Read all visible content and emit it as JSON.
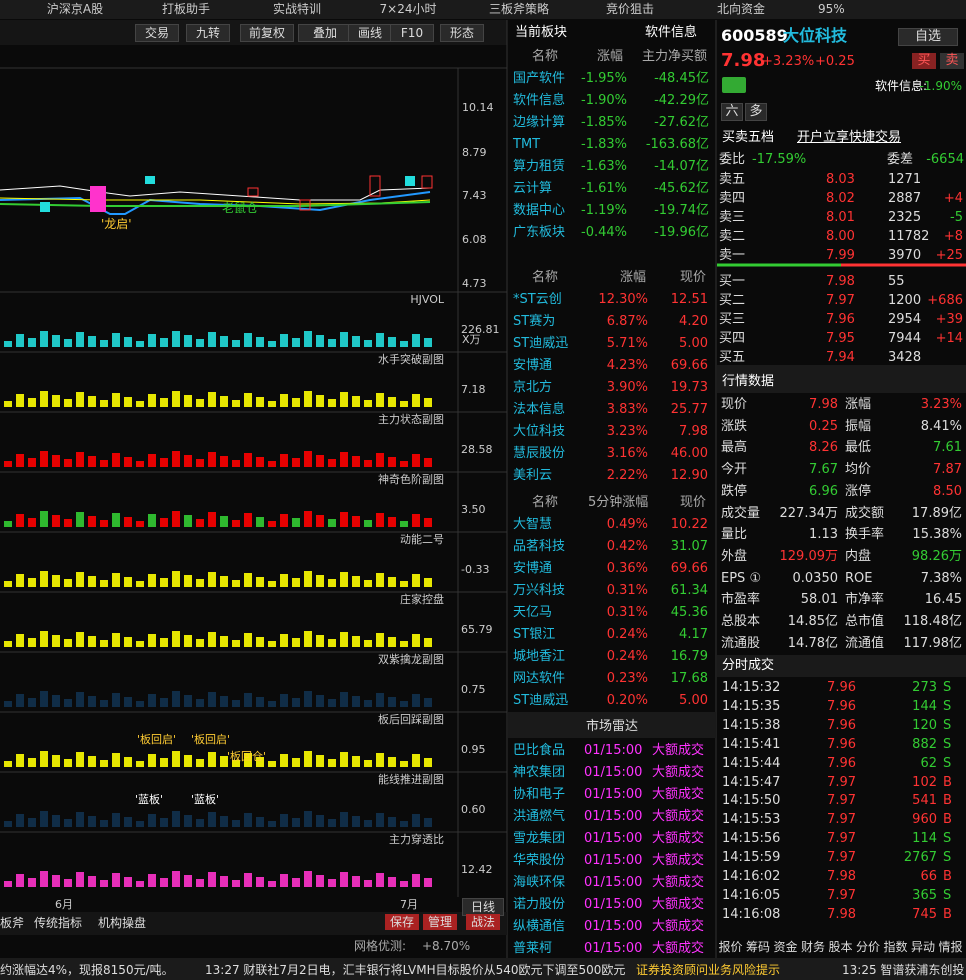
{
  "nav": [
    "沪深京A股",
    "打板助手",
    "实战特训",
    "7×24小时",
    "三板斧策略",
    "竞价狙击",
    "北向资金"
  ],
  "zoom": "95%",
  "toolbar": [
    "交易",
    "九转",
    "前复权",
    "叠加",
    "画线",
    "F10",
    "形态"
  ],
  "main_chart": {
    "yticks": [
      "10.14",
      "8.79",
      "7.43",
      "6.08",
      "4.73"
    ],
    "notes": [
      "'龙启'",
      "老鼠仓"
    ]
  },
  "panels": [
    {
      "title": "HJVOL",
      "value": "226.81",
      "unit": "X万"
    },
    {
      "title": "水手突破副图",
      "value": "7.18"
    },
    {
      "title": "主力状态副图",
      "value": "28.58"
    },
    {
      "title": "神奇色阶副图",
      "value": "3.50"
    },
    {
      "title": "动能二号",
      "value": "-0.33"
    },
    {
      "title": "庄家控盘",
      "value": "65.79"
    },
    {
      "title": "双紫擒龙副图",
      "value": "0.75"
    },
    {
      "title": "板后回踩副图",
      "value": "0.95",
      "notes": [
        "'板回启'",
        "'板回启'",
        "'板回仓'"
      ]
    },
    {
      "title": "能线推进副图",
      "value": "0.60",
      "notes": [
        "'蓝板'",
        "'蓝板'"
      ]
    },
    {
      "title": "主力穿透比",
      "value": "12.42"
    }
  ],
  "x_labels": [
    "6月",
    "7月"
  ],
  "period": "日线",
  "bottom_tabs": [
    "板斧",
    "传统指标",
    "机构操盘"
  ],
  "bottom_buttons": [
    "保存",
    "管理",
    "战法"
  ],
  "grid_test": {
    "label": "网格优测:",
    "value": "+8.70%"
  },
  "sectors": {
    "title": "当前板块",
    "tab": "软件信息",
    "headers": [
      "名称",
      "涨幅",
      "主力净买额"
    ],
    "rows": [
      [
        "国产软件",
        "-1.95%",
        "-48.45亿"
      ],
      [
        "软件信息",
        "-1.90%",
        "-42.29亿"
      ],
      [
        "边缘计算",
        "-1.85%",
        "-27.62亿"
      ],
      [
        "TMT",
        "-1.83%",
        "-163.68亿"
      ],
      [
        "算力租赁",
        "-1.63%",
        "-14.07亿"
      ],
      [
        "云计算",
        "-1.61%",
        "-45.62亿"
      ],
      [
        "数据中心",
        "-1.19%",
        "-19.74亿"
      ],
      [
        "广东板块",
        "-0.44%",
        "-19.96亿"
      ]
    ]
  },
  "gainers": {
    "headers": [
      "名称",
      "涨幅",
      "现价"
    ],
    "rows": [
      [
        "*ST云创",
        "12.30%",
        "12.51"
      ],
      [
        "ST赛为",
        "6.87%",
        "4.20"
      ],
      [
        "ST迪威迅",
        "5.71%",
        "5.00"
      ],
      [
        "安博通",
        "4.23%",
        "69.66"
      ],
      [
        "京北方",
        "3.90%",
        "19.73"
      ],
      [
        "法本信息",
        "3.83%",
        "25.77"
      ],
      [
        "大位科技",
        "3.23%",
        "7.98"
      ],
      [
        "慧辰股份",
        "3.16%",
        "46.00"
      ],
      [
        "美利云",
        "2.22%",
        "12.90"
      ]
    ]
  },
  "fast": {
    "headers": [
      "名称",
      "5分钟涨幅",
      "现价"
    ],
    "rows": [
      [
        "大智慧",
        "0.49%",
        "10.22"
      ],
      [
        "品茗科技",
        "0.42%",
        "31.07"
      ],
      [
        "安博通",
        "0.36%",
        "69.66"
      ],
      [
        "万兴科技",
        "0.31%",
        "61.34"
      ],
      [
        "天亿马",
        "0.31%",
        "45.36"
      ],
      [
        "ST银江",
        "0.24%",
        "4.17"
      ],
      [
        "城地香江",
        "0.24%",
        "16.79"
      ],
      [
        "网达软件",
        "0.23%",
        "17.68"
      ],
      [
        "ST迪威迅",
        "0.20%",
        "5.00"
      ]
    ],
    "price_colors": [
      "#f33",
      "#3c3",
      "#f33",
      "#3c3",
      "#3c3",
      "#3c3",
      "#3c3",
      "#3c3",
      "#f33"
    ]
  },
  "radar": {
    "title": "市场雷达",
    "rows": [
      [
        "巴比食品",
        "01/15:00",
        "大额成交"
      ],
      [
        "神农集团",
        "01/15:00",
        "大额成交"
      ],
      [
        "协和电子",
        "01/15:00",
        "大额成交"
      ],
      [
        "洪通燃气",
        "01/15:00",
        "大额成交"
      ],
      [
        "雪龙集团",
        "01/15:00",
        "大额成交"
      ],
      [
        "华荣股份",
        "01/15:00",
        "大额成交"
      ],
      [
        "海峡环保",
        "01/15:00",
        "大额成交"
      ],
      [
        "诺力股份",
        "01/15:00",
        "大额成交"
      ],
      [
        "纵横通信",
        "01/15:00",
        "大额成交"
      ],
      [
        "普莱柯",
        "01/15:00",
        "大额成交"
      ]
    ]
  },
  "quote": {
    "code": "600589",
    "name": "大位科技",
    "watch": "自选",
    "price": "7.98",
    "pct": "+3.23%",
    "change": "+0.25",
    "buy": "买",
    "sell": "卖",
    "sector": "软件信息:",
    "sector_pct": "-1.90%",
    "tags": [
      "六",
      "多"
    ],
    "book_title": "买卖五档",
    "book_link": "开户立享快捷交易",
    "ratio_label": "委比",
    "ratio": "-17.59%",
    "diff_label": "委差",
    "diff": "-6654",
    "asks": [
      [
        "卖五",
        "8.03",
        "1271",
        ""
      ],
      [
        "卖四",
        "8.02",
        "2887",
        "+4"
      ],
      [
        "卖三",
        "8.01",
        "2325",
        "-5"
      ],
      [
        "卖二",
        "8.00",
        "11782",
        "+8"
      ],
      [
        "卖一",
        "7.99",
        "3970",
        "+25"
      ]
    ],
    "bids": [
      [
        "买一",
        "7.98",
        "55",
        ""
      ],
      [
        "买二",
        "7.97",
        "1200",
        "+686"
      ],
      [
        "买三",
        "7.96",
        "2954",
        "+39"
      ],
      [
        "买四",
        "7.95",
        "7944",
        "+14"
      ],
      [
        "买五",
        "7.94",
        "3428",
        ""
      ]
    ],
    "stats_title": "行情数据",
    "stats": [
      [
        "现价",
        "7.98",
        "涨幅",
        "3.23%"
      ],
      [
        "涨跌",
        "0.25",
        "振幅",
        "8.41%"
      ],
      [
        "最高",
        "8.26",
        "最低",
        "7.61"
      ],
      [
        "今开",
        "7.67",
        "均价",
        "7.87"
      ],
      [
        "跌停",
        "6.96",
        "涨停",
        "8.50"
      ],
      [
        "成交量",
        "227.34万",
        "成交额",
        "17.89亿"
      ],
      [
        "量比",
        "1.13",
        "换手率",
        "15.38%"
      ],
      [
        "外盘",
        "129.09万",
        "内盘",
        "98.26万"
      ],
      [
        "EPS ①",
        "0.0350",
        "ROE",
        "7.38%"
      ],
      [
        "市盈率",
        "58.01",
        "市净率",
        "16.45"
      ],
      [
        "总股本",
        "14.85亿",
        "总市值",
        "118.48亿"
      ],
      [
        "流通股",
        "14.78亿",
        "流通值",
        "117.98亿"
      ]
    ],
    "stats_colors": [
      [
        "#f33",
        "#f33"
      ],
      [
        "#f33",
        "#ddd"
      ],
      [
        "#f33",
        "#3c3"
      ],
      [
        "#3c3",
        "#f33"
      ],
      [
        "#3c3",
        "#f33"
      ],
      [
        "#ddd",
        "#ddd"
      ],
      [
        "#ddd",
        "#ddd"
      ],
      [
        "#f33",
        "#3c3"
      ],
      [
        "#ddd",
        "#ddd"
      ],
      [
        "#ddd",
        "#ddd"
      ],
      [
        "#ddd",
        "#ddd"
      ],
      [
        "#ddd",
        "#ddd"
      ]
    ],
    "trades_title": "分时成交",
    "trades": [
      [
        "14:15:32",
        "7.96",
        "273",
        "S"
      ],
      [
        "14:15:35",
        "7.96",
        "144",
        "S"
      ],
      [
        "14:15:38",
        "7.96",
        "120",
        "S"
      ],
      [
        "14:15:41",
        "7.96",
        "882",
        "S"
      ],
      [
        "14:15:44",
        "7.96",
        "62",
        "S"
      ],
      [
        "14:15:47",
        "7.97",
        "102",
        "B"
      ],
      [
        "14:15:50",
        "7.97",
        "541",
        "B"
      ],
      [
        "14:15:53",
        "7.97",
        "960",
        "B"
      ],
      [
        "14:15:56",
        "7.97",
        "114",
        "S"
      ],
      [
        "14:15:59",
        "7.97",
        "2767",
        "S"
      ],
      [
        "14:16:02",
        "7.98",
        "66",
        "B"
      ],
      [
        "14:16:05",
        "7.97",
        "365",
        "S"
      ],
      [
        "14:16:08",
        "7.98",
        "745",
        "B"
      ]
    ],
    "tabs": [
      "报价",
      "筹码",
      "资金",
      "财务",
      "股本",
      "分价",
      "指数",
      "异动",
      "情报"
    ]
  },
  "ticker": [
    "约涨幅达4%，现报8150元/吨。",
    "13:27 财联社7月2日电，汇丰银行将LVMH目标股价从540欧元下调至500欧元。",
    "证券投资顾问业务风险提示",
    "13:25 智谱获浦东创投"
  ]
}
